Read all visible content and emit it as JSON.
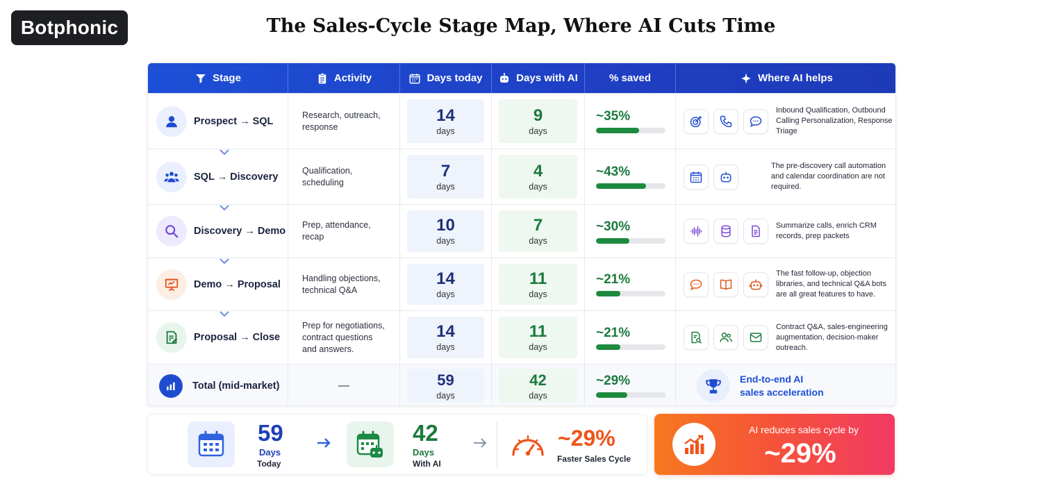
{
  "brand": "Botphonic",
  "title": "The Sales-Cycle Stage Map, Where AI Cuts Time",
  "colors": {
    "header_blue": "#1d4fd6",
    "green": "#1b7a3d",
    "orange": "#f0531b"
  },
  "table": {
    "headers": [
      {
        "label": "Stage",
        "icon": "funnel-icon"
      },
      {
        "label": "Activity",
        "icon": "clipboard-icon"
      },
      {
        "label": "Days today",
        "icon": "calendar-icon"
      },
      {
        "label": "Days with AI",
        "icon": "robot-icon"
      },
      {
        "label": "% saved",
        "icon": ""
      },
      {
        "label": "Where AI helps",
        "icon": "sparkle-icon"
      }
    ],
    "rows": [
      {
        "stage": "Prospect → SQL",
        "stage_icon": "user-icon",
        "activity": "Research, outreach, response",
        "days_today": "14",
        "days_ai": "9",
        "unit": "days",
        "saved": "~35%",
        "saved_fraction": 0.62,
        "help_icons": [
          "target-icon",
          "phone-icon",
          "chat-icon"
        ],
        "help_text": "Inbound Qualification, Outbound Calling Personalization, Response Triage"
      },
      {
        "stage": "SQL → Discovery",
        "stage_icon": "users-icon",
        "activity": "Qualification, scheduling",
        "days_today": "7",
        "days_ai": "4",
        "unit": "days",
        "saved": "~43%",
        "saved_fraction": 0.72,
        "help_icons": [
          "calendar-icon",
          "robot-icon"
        ],
        "help_text": "The pre-discovery call automation and calendar coordination are not required."
      },
      {
        "stage": "Discovery → Demo",
        "stage_icon": "search-icon",
        "activity": "Prep, attendance, recap",
        "days_today": "10",
        "days_ai": "7",
        "unit": "days",
        "saved": "~30%",
        "saved_fraction": 0.48,
        "help_icons": [
          "waveform-icon",
          "database-icon",
          "document-icon"
        ],
        "help_text": "Summarize calls, enrich CRM records, prep packets"
      },
      {
        "stage": "Demo → Proposal",
        "stage_icon": "presentation-icon",
        "activity": "Handling objections, technical Q&A",
        "days_today": "14",
        "days_ai": "11",
        "unit": "days",
        "saved": "~21%",
        "saved_fraction": 0.35,
        "help_icons": [
          "chat-icon",
          "book-icon",
          "robot-icon"
        ],
        "help_text": "The fast follow-up, objection libraries, and technical Q&A bots are all great features to have."
      },
      {
        "stage": "Proposal → Close",
        "stage_icon": "contract-icon",
        "activity": "Prep for negotiations, contract questions and answers.",
        "days_today": "14",
        "days_ai": "11",
        "unit": "days",
        "saved": "~21%",
        "saved_fraction": 0.35,
        "help_icons": [
          "document-search-icon",
          "users-icon",
          "mail-icon"
        ],
        "help_text": "Contract Q&A, sales-engineering augmentation, decision-maker outreach."
      }
    ],
    "total": {
      "stage": "Total (mid-market)",
      "stage_icon": "bar-chart-icon",
      "activity": "—",
      "days_today": "59",
      "days_ai": "42",
      "unit": "days",
      "saved": "~29%",
      "saved_fraction": 0.45,
      "help_icon": "trophy-icon",
      "help_text_line1": "End-to-end AI",
      "help_text_line2": "sales acceleration"
    }
  },
  "summary": {
    "today_value": "59",
    "today_label1": "Days",
    "today_label2": "Today",
    "ai_value": "42",
    "ai_label1": "Days",
    "ai_label2": "With AI",
    "faster_value": "~29%",
    "faster_label": "Faster Sales Cycle",
    "banner_label": "AI reduces sales cycle by",
    "banner_value": "~29%"
  }
}
